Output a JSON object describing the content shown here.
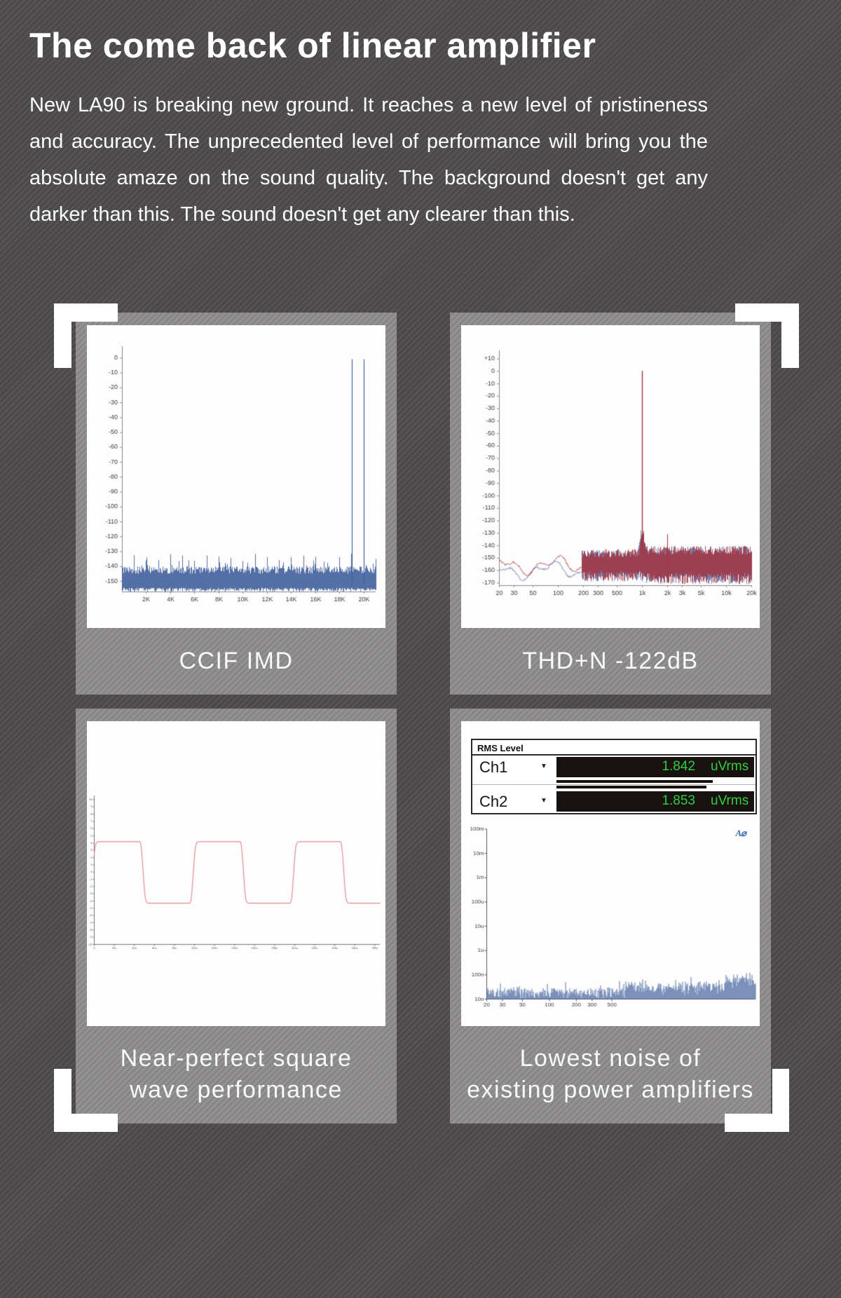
{
  "page": {
    "title": "The come back of linear amplifier",
    "body": "New LA90 is breaking new ground. It reaches a new level of pristineness and accuracy. The unprecedented level of performance will bring you the absolute amaze on the sound quality. The background doesn't get any darker than this. The sound doesn't get any clearer than this."
  },
  "panels": [
    {
      "caption": [
        "CCIF IMD"
      ]
    },
    {
      "caption": [
        "THD+N -122dB"
      ]
    },
    {
      "caption": [
        "Near-perfect square",
        "wave performance"
      ]
    },
    {
      "caption": [
        "Lowest noise of",
        "existing power amplifiers"
      ]
    }
  ],
  "rms_panel": {
    "header": "RMS Level",
    "rows": [
      {
        "label": "Ch1",
        "value": "1.842",
        "unit": "uVrms"
      },
      {
        "label": "Ch2",
        "value": "1.853",
        "unit": "uVrms"
      }
    ],
    "meter_fractions": [
      0.79,
      0.76
    ],
    "logo": "A⌀"
  },
  "chart_data": [
    {
      "id": "ccif_imd",
      "type": "line",
      "title": "CCIF IMD",
      "x_scale": "linear",
      "xlim": [
        0,
        21000
      ],
      "ylim": [
        -157,
        2
      ],
      "y_ticks": [
        "0",
        "-10",
        "-20",
        "-30",
        "-40",
        "-50",
        "-60",
        "-70",
        "-80",
        "-90",
        "-100",
        "-110",
        "-120",
        "-130",
        "-140",
        "-150"
      ],
      "x_ticks": [
        {
          "v": 2000,
          "label": "2K"
        },
        {
          "v": 4000,
          "label": "4K"
        },
        {
          "v": 6000,
          "label": "6K"
        },
        {
          "v": 8000,
          "label": "8K"
        },
        {
          "v": 10000,
          "label": "10K"
        },
        {
          "v": 12000,
          "label": "12K"
        },
        {
          "v": 14000,
          "label": "14K"
        },
        {
          "v": 16000,
          "label": "16K"
        },
        {
          "v": 18000,
          "label": "18K"
        },
        {
          "v": 20000,
          "label": "20K"
        }
      ],
      "series": [
        {
          "name": "IMD spectrum",
          "color": "#44639e"
        }
      ],
      "noise_floor_db": [
        -157,
        -144
      ],
      "distortion_spike_interval_hz": 1000,
      "distortion_spike_db": -135,
      "test_tones": [
        {
          "freq_hz": 19000,
          "level_db": -1
        },
        {
          "freq_hz": 20000,
          "level_db": -1
        }
      ]
    },
    {
      "id": "thdn",
      "type": "line",
      "title": "THD+N -122dB",
      "x_scale": "log",
      "xlim": [
        20,
        20000
      ],
      "ylim": [
        -170,
        10
      ],
      "y_ticks": [
        "+10",
        "0",
        "-10",
        "-20",
        "-30",
        "-40",
        "-50",
        "-60",
        "-70",
        "-80",
        "-90",
        "-100",
        "-110",
        "-120",
        "-130",
        "-140",
        "-150",
        "-160",
        "-170"
      ],
      "x_ticks": [
        {
          "v": 20,
          "label": "20"
        },
        {
          "v": 30,
          "label": "30"
        },
        {
          "v": 50,
          "label": "50"
        },
        {
          "v": 100,
          "label": "100"
        },
        {
          "v": 200,
          "label": "200"
        },
        {
          "v": 300,
          "label": "300"
        },
        {
          "v": 500,
          "label": "500"
        },
        {
          "v": 1000,
          "label": "1k"
        },
        {
          "v": 2000,
          "label": "2k"
        },
        {
          "v": 3000,
          "label": "3k"
        },
        {
          "v": 5000,
          "label": "5k"
        },
        {
          "v": 10000,
          "label": "10k"
        },
        {
          "v": 20000,
          "label": "20k"
        }
      ],
      "series": [
        {
          "name": "Ch2",
          "color": "#5d72a8"
        },
        {
          "name": "Ch1",
          "color": "#a2333f"
        }
      ],
      "noise_floor_db": [
        -168,
        -148
      ],
      "fundamental": {
        "freq_hz": 1000,
        "level_db": 0
      },
      "harmonic_spikes": [
        {
          "freq_hz": 2000,
          "level_db": -131
        }
      ]
    },
    {
      "id": "square_wave",
      "type": "line",
      "title": "Near-perfect square wave performance",
      "xlim_us": [
        0,
        285
      ],
      "ylim": [
        -10,
        10
      ],
      "y_tick_step": 1,
      "x_ticks": [
        {
          "v": 0,
          "label": "0"
        },
        {
          "v": 20,
          "label": "20u"
        },
        {
          "v": 40,
          "label": "40u"
        },
        {
          "v": 60,
          "label": "60u"
        },
        {
          "v": 80,
          "label": "80u"
        },
        {
          "v": 100,
          "label": "100u"
        },
        {
          "v": 120,
          "label": "120u"
        },
        {
          "v": 140,
          "label": "140u"
        },
        {
          "v": 160,
          "label": "160u"
        },
        {
          "v": 180,
          "label": "180u"
        },
        {
          "v": 200,
          "label": "200u"
        },
        {
          "v": 220,
          "label": "220u"
        },
        {
          "v": 240,
          "label": "240u"
        },
        {
          "v": 260,
          "label": "260u"
        },
        {
          "v": 280,
          "label": "280u"
        }
      ],
      "wave": {
        "shape": "square",
        "high_level": 4.2,
        "low_level": -4.3,
        "period_us": 100,
        "duty": 0.5,
        "edge_us": 4
      },
      "series": [
        {
          "name": "output",
          "color": "#e2868d"
        }
      ]
    },
    {
      "id": "rms_noise",
      "type": "line",
      "title": "Lowest noise of existing power amplifiers",
      "x_scale": "log",
      "y_scale": "log",
      "xlim": [
        20,
        20000
      ],
      "y_ticks": [
        {
          "v": 0.1,
          "label": "100m"
        },
        {
          "v": 0.01,
          "label": "10m"
        },
        {
          "v": 0.001,
          "label": "1m"
        },
        {
          "v": 0.0001,
          "label": "100u"
        },
        {
          "v": 1e-05,
          "label": "10u"
        },
        {
          "v": 1e-06,
          "label": "1u"
        },
        {
          "v": 1e-07,
          "label": "100n"
        },
        {
          "v": 1e-08,
          "label": "10n"
        }
      ],
      "x_ticks": [
        {
          "v": 20,
          "label": "20"
        },
        {
          "v": 30,
          "label": "30"
        },
        {
          "v": 50,
          "label": "50"
        },
        {
          "v": 100,
          "label": "100"
        },
        {
          "v": 200,
          "label": "200"
        },
        {
          "v": 300,
          "label": "300"
        },
        {
          "v": 500,
          "label": "500"
        }
      ],
      "noise_floor_range": [
        "10n",
        "30n"
      ],
      "spikes": [
        {
          "freq_hz": 150,
          "level": "50n"
        },
        {
          "freq_hz": 600,
          "level": "55n"
        }
      ],
      "series": [
        {
          "name": "noise spectrum",
          "color": "#44639e"
        }
      ]
    }
  ]
}
